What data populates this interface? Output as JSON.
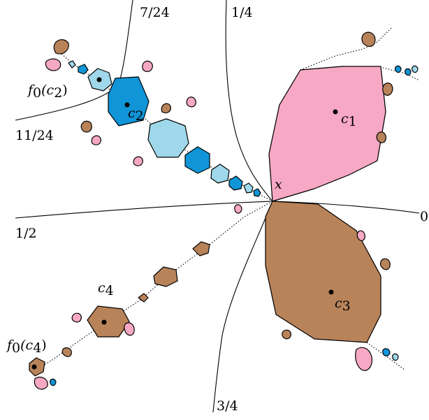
{
  "colors": {
    "pink": "#f7a8c4",
    "brown": "#b9835a",
    "blue": "#0f95d8",
    "light_blue": "#9fd8ea",
    "line": "#000000"
  },
  "ray_labels": {
    "r_7_24": "7/24",
    "r_1_4": "1/4",
    "r_11_24": "11/24",
    "r_1_2": "1/2",
    "r_0": "0",
    "r_3_4": "3/4"
  },
  "point_labels": {
    "c1": "c",
    "c1_sub": "1",
    "c2": "c",
    "c2_sub": "2",
    "c3": "c",
    "c3_sub": "3",
    "c4": "c",
    "c4_sub": "4",
    "x": "x",
    "f0c2": "f",
    "f0c2_sub": "0",
    "f0c2_arg": "(c",
    "f0c2_arg_sub": "2",
    "f0c2_close": ")",
    "f0c4": "f",
    "f0c4_sub": "0",
    "f0c4_arg": "(c",
    "f0c4_arg_sub": "4",
    "f0c4_close": ")"
  }
}
